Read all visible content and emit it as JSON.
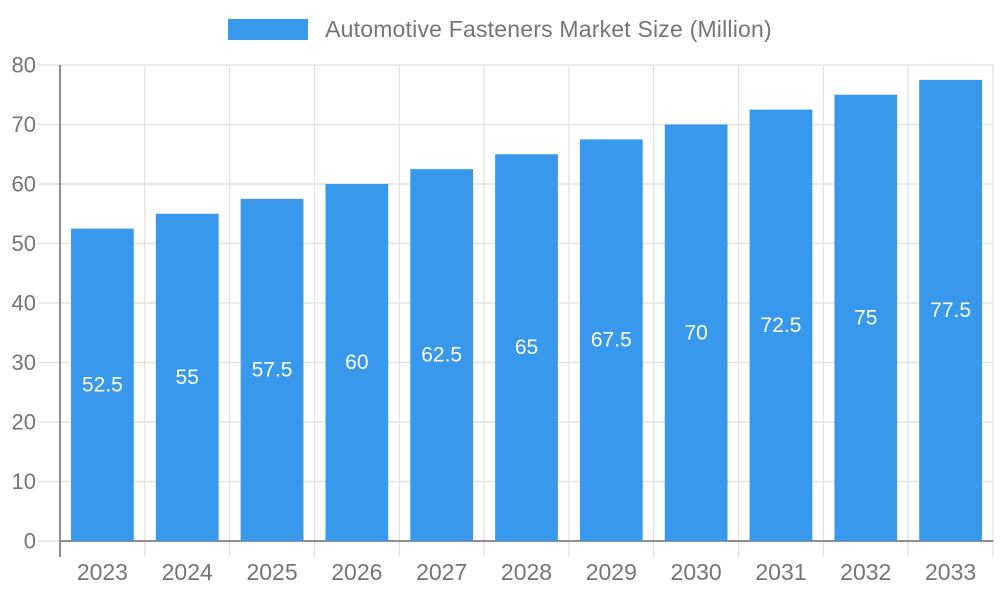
{
  "chart_data": {
    "type": "bar",
    "title": "Automotive Fasteners Market Size (Million)",
    "categories": [
      "2023",
      "2024",
      "2025",
      "2026",
      "2027",
      "2028",
      "2029",
      "2030",
      "2031",
      "2032",
      "2033"
    ],
    "values": [
      52.5,
      55,
      57.5,
      60,
      62.5,
      65,
      67.5,
      70,
      72.5,
      75,
      77.5
    ],
    "xlabel": "",
    "ylabel": "",
    "ylim": [
      0,
      80
    ],
    "ytick_step": 10,
    "grid": true,
    "legend_position": "top",
    "value_labels_position": "inside-center",
    "colors": {
      "bar": "#3899EC",
      "bar_value_label": "#ffffff",
      "axis_tick_label": "#757575",
      "gridline": "#E3E3E3",
      "axis_line": "#8F8F8F"
    }
  }
}
